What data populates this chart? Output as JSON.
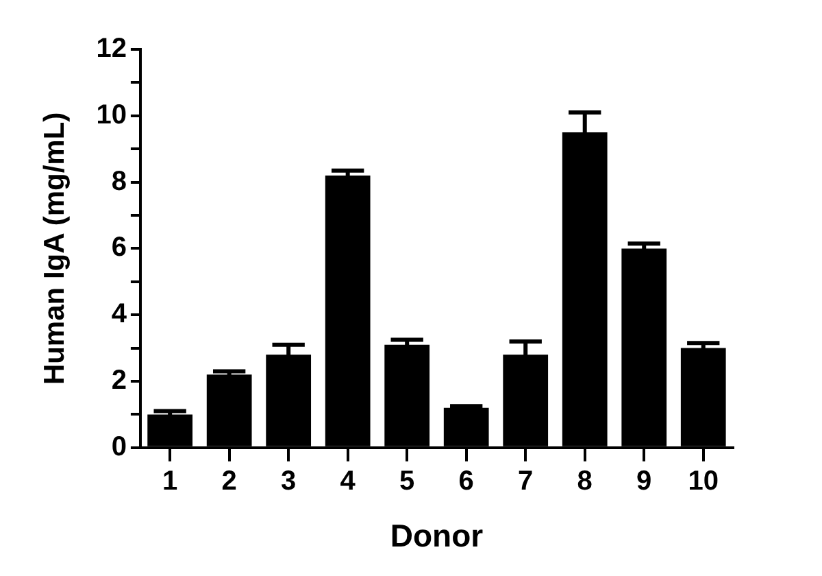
{
  "chart_data": {
    "type": "bar",
    "xlabel": "Donor",
    "ylabel": "Human IgA (mg/mL)",
    "categories": [
      "1",
      "2",
      "3",
      "4",
      "5",
      "6",
      "7",
      "8",
      "9",
      "10"
    ],
    "values": [
      1.0,
      2.2,
      2.8,
      8.2,
      3.1,
      1.2,
      2.8,
      9.5,
      6.0,
      3.0
    ],
    "errors": [
      0.1,
      0.1,
      0.3,
      0.15,
      0.15,
      0.05,
      0.4,
      0.6,
      0.15,
      0.15
    ],
    "color": "#000000",
    "ylim": [
      0,
      12
    ],
    "yticks": [
      0,
      {
        "value": 1,
        "label": null
      },
      2,
      {
        "value": 3,
        "label": null
      },
      4,
      {
        "value": 5,
        "label": null
      },
      6,
      {
        "value": 7,
        "label": null
      },
      8,
      {
        "value": 9,
        "label": null
      },
      10,
      {
        "value": 11,
        "label": null
      },
      12
    ],
    "grid": false,
    "legend": false
  }
}
